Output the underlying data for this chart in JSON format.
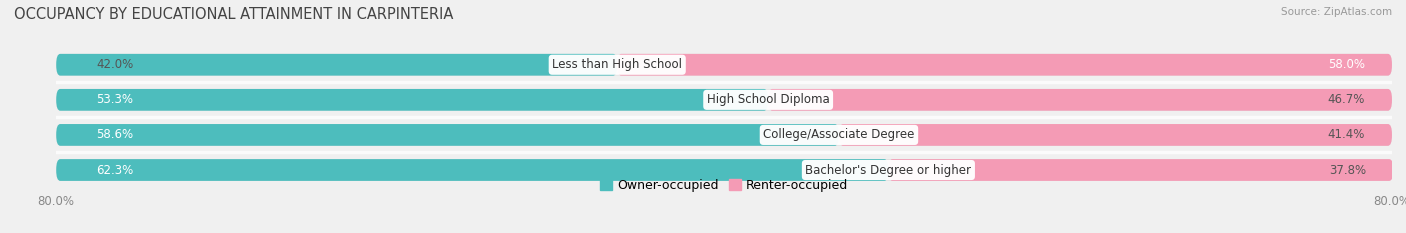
{
  "title": "OCCUPANCY BY EDUCATIONAL ATTAINMENT IN CARPINTERIA",
  "source": "Source: ZipAtlas.com",
  "categories": [
    "Less than High School",
    "High School Diploma",
    "College/Associate Degree",
    "Bachelor's Degree or higher"
  ],
  "owner_values": [
    42.0,
    53.3,
    58.6,
    62.3
  ],
  "renter_values": [
    58.0,
    46.7,
    41.4,
    37.8
  ],
  "owner_color": "#4DBDBD",
  "renter_color": "#F49BB5",
  "background_color": "#f0f0f0",
  "bar_background": "#e2e2e2",
  "bar_height": 0.62,
  "label_color_owner_inside": "#ffffff",
  "label_color_owner_outside": "#555555",
  "label_color_renter_inside": "#ffffff",
  "label_color_renter_outside": "#555555",
  "title_fontsize": 10.5,
  "tick_fontsize": 8.5,
  "legend_fontsize": 9,
  "category_fontsize": 8.5,
  "source_fontsize": 7.5
}
